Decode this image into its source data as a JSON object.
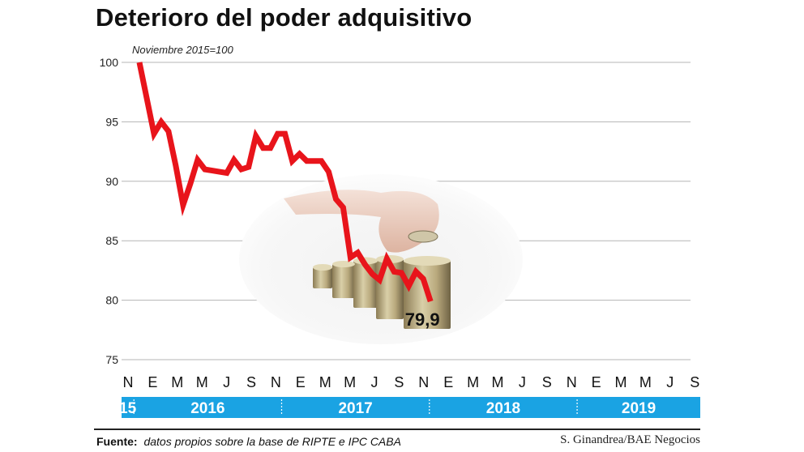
{
  "title": "Deterioro del poder adquisitivo",
  "chart_data": {
    "type": "line",
    "subtitle": "Noviembre 2015=100",
    "ylim": [
      75,
      100
    ],
    "yticks": [
      100,
      95,
      90,
      85,
      80,
      75
    ],
    "x_month_labels": [
      "N",
      "E",
      "M",
      "M",
      "J",
      "S",
      "N",
      "E",
      "M",
      "M",
      "J",
      "S",
      "N",
      "E",
      "M",
      "M",
      "J",
      "S",
      "N",
      "E",
      "M",
      "M",
      "J",
      "S"
    ],
    "year_bands": [
      {
        "label": "15",
        "from": 0,
        "to": 1
      },
      {
        "label": "2016",
        "from": 1,
        "to": 13
      },
      {
        "label": "2017",
        "from": 13,
        "to": 25
      },
      {
        "label": "2018",
        "from": 25,
        "to": 37
      },
      {
        "label": "2019",
        "from": 37,
        "to": 47
      }
    ],
    "series": [
      {
        "values": [
          100,
          97,
          94,
          95,
          94.2,
          91.3,
          88,
          89.8,
          91.8,
          91,
          90.9,
          90.8,
          90.7,
          91.8,
          91,
          91.2,
          93.8,
          92.8,
          92.8,
          94,
          94,
          91.7,
          92.3,
          91.7,
          91.7,
          91.7,
          90.8,
          88.5,
          87.8,
          83.6,
          84,
          83,
          82.2,
          81.7,
          83.5,
          82.4,
          82.3,
          81.2,
          82.4,
          81.8,
          79.9
        ],
        "x_positions": [
          0,
          1,
          2,
          3,
          4,
          5,
          6,
          7,
          8,
          9,
          10,
          11,
          12,
          13,
          14,
          15,
          16,
          17,
          18,
          19,
          20,
          21,
          22,
          23,
          24,
          25,
          26,
          27,
          28,
          29,
          30,
          31,
          32,
          33,
          34,
          35,
          36,
          37,
          38,
          39,
          40
        ],
        "color": "#e8141b"
      }
    ],
    "annotations": [
      {
        "text": "79,9",
        "at_index": 40
      }
    ],
    "grid": "horizontal",
    "band_color": "#1aa3e3"
  },
  "source": {
    "label": "Fuente:",
    "text": "datos propios sobre la base de RIPTE e IPC CABA"
  },
  "credit": "S. Ginandrea/BAE Negocios"
}
